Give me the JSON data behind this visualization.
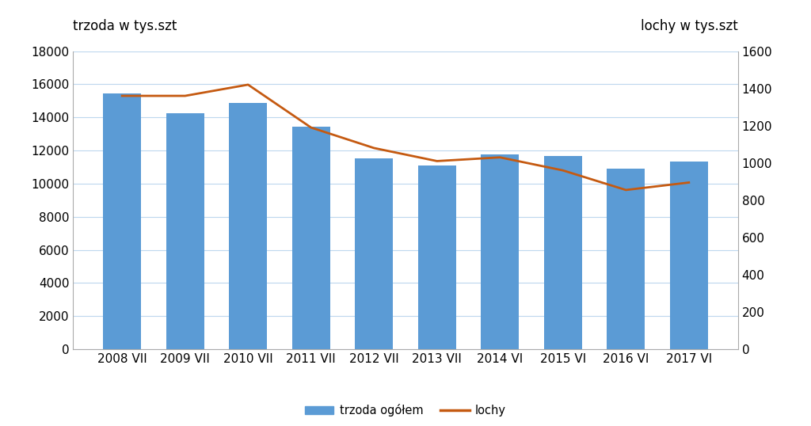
{
  "categories": [
    "2008 VII",
    "2009 VII",
    "2010 VII",
    "2011 VII",
    "2012 VII",
    "2013 VII",
    "2014 VI",
    "2015 VI",
    "2016 VI",
    "2017 VI"
  ],
  "trzoda_values": [
    15450,
    14250,
    14850,
    13450,
    11550,
    11100,
    11750,
    11650,
    10900,
    11350
  ],
  "lochy_values": [
    1360,
    1360,
    1420,
    1190,
    1080,
    1010,
    1030,
    960,
    855,
    895
  ],
  "bar_color": "#5B9BD5",
  "line_color": "#C55A11",
  "ylabel_left": "trzoda w tys.szt",
  "ylabel_right": "lochy w tys.szt",
  "ylim_left": [
    0,
    18000
  ],
  "ylim_right": [
    0,
    1600
  ],
  "yticks_left": [
    0,
    2000,
    4000,
    6000,
    8000,
    10000,
    12000,
    14000,
    16000,
    18000
  ],
  "yticks_right": [
    0,
    200,
    400,
    600,
    800,
    1000,
    1200,
    1400,
    1600
  ],
  "legend_bar": "trzoda ogółem",
  "legend_line": "lochy",
  "background_color": "#ffffff",
  "grid_color": "#BDD7EE",
  "label_fontsize": 12,
  "tick_fontsize": 11
}
